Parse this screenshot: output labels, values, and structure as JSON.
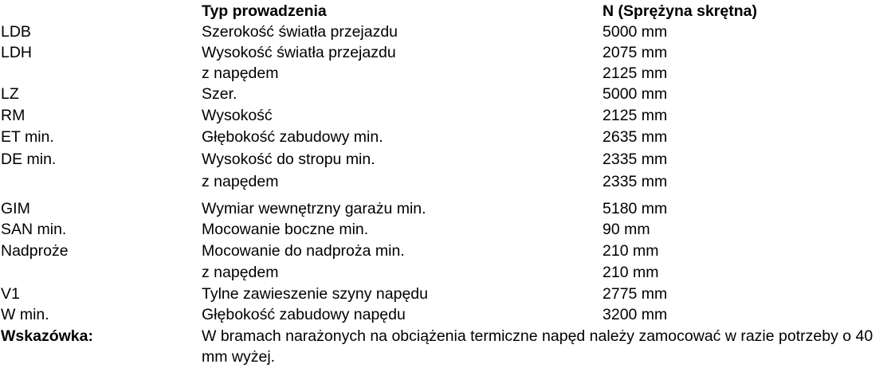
{
  "header": {
    "col1": "",
    "col2": "Typ prowadzenia",
    "col3": "N (Sprężyna skrętna)"
  },
  "rows": [
    {
      "code": "LDB",
      "desc": "Szerokość światła przejazdu",
      "value": "5000 mm"
    },
    {
      "code": "LDH",
      "desc": "Wysokość światła przejazdu",
      "value": "2075 mm"
    },
    {
      "code": "",
      "desc": "z napędem",
      "value": "2125 mm"
    },
    {
      "code": "LZ",
      "desc": "Szer.",
      "value": "5000 mm"
    },
    {
      "code": "RM",
      "desc": "Wysokość",
      "value": "2125 mm"
    },
    {
      "code": "ET min.",
      "desc": "Głębokość zabudowy min.",
      "value": "2635 mm"
    },
    {
      "code": "DE min.",
      "desc": "Wysokość do stropu min.",
      "value": "2335 mm"
    },
    {
      "code": "",
      "desc": "z napędem",
      "value": "2335 mm"
    },
    {
      "code": "GIM",
      "desc": "Wymiar wewnętrzny garażu min.",
      "value": "5180 mm"
    },
    {
      "code": "SAN min.",
      "desc": "Mocowanie boczne min.",
      "value": "90 mm"
    },
    {
      "code": "Nadproże",
      "desc": "Mocowanie do nadproża min.",
      "value": "210 mm"
    },
    {
      "code": "",
      "desc": "z napędem",
      "value": "210 mm"
    },
    {
      "code": "V1",
      "desc": "Tylne zawieszenie szyny napędu",
      "value": "2775 mm"
    },
    {
      "code": "W min.",
      "desc": "Głębokość zabudowy napędu",
      "value": "3200 mm"
    }
  ],
  "note": {
    "label": "Wskazówka:",
    "text": "W bramach narażonych na obciążenia termiczne napęd należy zamocować w razie potrzeby o 40 mm wyżej."
  }
}
